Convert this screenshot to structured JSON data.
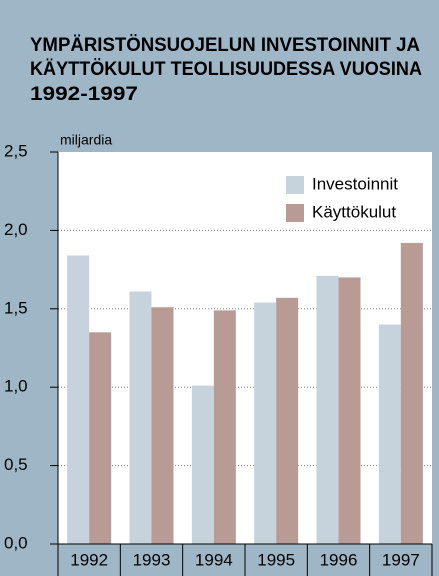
{
  "chart_data": {
    "type": "bar",
    "title": [
      "YMPÄRISTÖNSUOJELUN INVESTOINNIT JA",
      "KÄYTTÖKULUT TEOLLISUUDESSA VUOSINA",
      "1992-1997"
    ],
    "y_label": "miljardia",
    "categories": [
      "1992",
      "1993",
      "1994",
      "1995",
      "1996",
      "1997"
    ],
    "series": [
      {
        "name": "Investoinnit",
        "color": "#c6d3dd",
        "values": [
          1.84,
          1.61,
          1.01,
          1.54,
          1.71,
          1.4
        ]
      },
      {
        "name": "Käyttökulut",
        "color": "#b89b94",
        "values": [
          1.35,
          1.51,
          1.49,
          1.57,
          1.7,
          1.92
        ]
      }
    ],
    "ylim": [
      0,
      2.5
    ],
    "yticks": [
      {
        "value": 0,
        "label": "0,0"
      },
      {
        "value": 0.5,
        "label": "0,5"
      },
      {
        "value": 1,
        "label": "1,0"
      },
      {
        "value": 1.5,
        "label": "1,5"
      },
      {
        "value": 2,
        "label": "2,0"
      },
      {
        "value": 2.5,
        "label": "2,5"
      }
    ],
    "grid": true,
    "legend": "upper right"
  }
}
